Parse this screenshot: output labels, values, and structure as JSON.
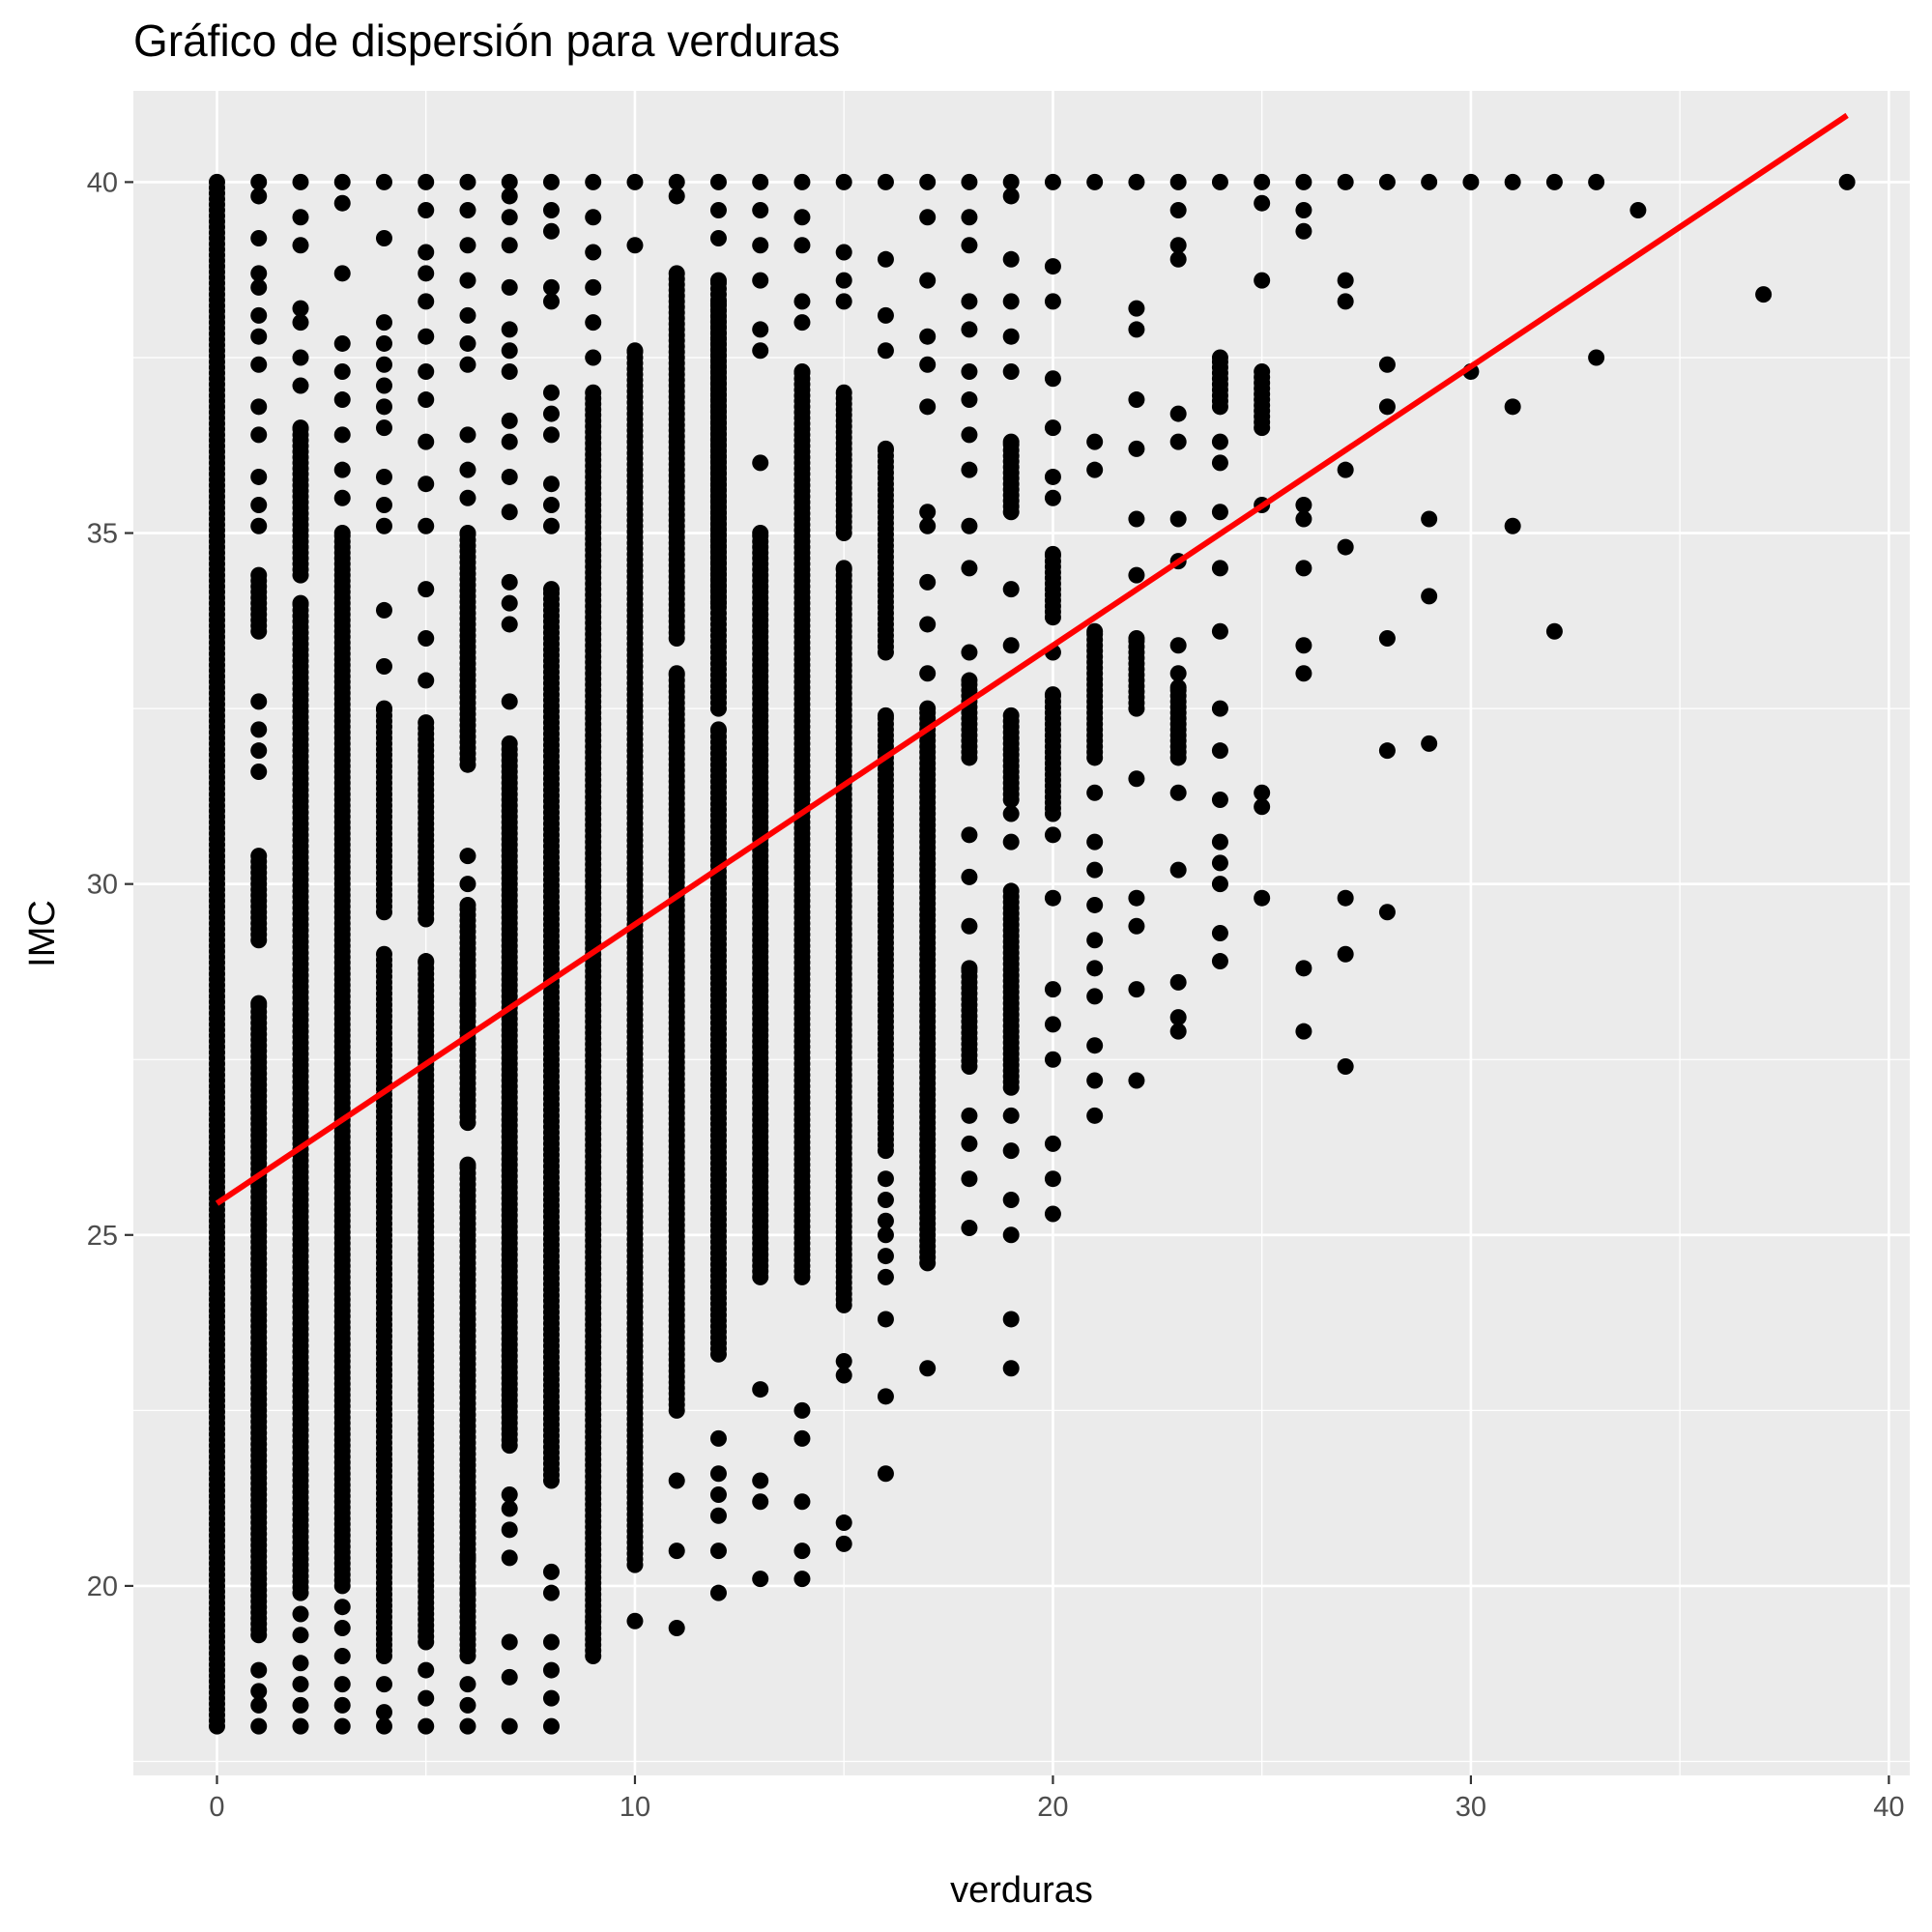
{
  "chart_data": {
    "type": "scatter",
    "title": "Gráfico de dispersión para verduras",
    "xlabel": "verduras",
    "ylabel": "IMC",
    "xlim": [
      -2,
      40.5
    ],
    "ylim": [
      17.3,
      41.3
    ],
    "x_ticks": [
      0,
      10,
      20,
      30,
      40
    ],
    "y_ticks": [
      20,
      25,
      30,
      35,
      40
    ],
    "grid": true,
    "legend": "none",
    "colors": {
      "panel": "#EBEBEB",
      "grid": "#FFFFFF",
      "points": "#000000",
      "fit_line": "#FF0000",
      "tick_label": "#4D4D4D"
    },
    "fit_line": {
      "x": [
        0,
        39
      ],
      "y": [
        25.45,
        40.95
      ]
    },
    "point_columns": [
      {
        "x": 0,
        "ranges": [
          [
            18.0,
            40.0
          ]
        ],
        "points": []
      },
      {
        "x": 1,
        "ranges": [
          [
            19.3,
            28.3
          ],
          [
            29.2,
            30.4
          ],
          [
            33.6,
            34.4
          ]
        ],
        "points": [
          18.0,
          18.3,
          18.5,
          18.8,
          31.6,
          31.9,
          32.2,
          32.6,
          35.1,
          35.4,
          35.8,
          36.4,
          36.8,
          37.4,
          37.8,
          38.1,
          38.5,
          38.7,
          39.2,
          39.8,
          40.0
        ]
      },
      {
        "x": 2,
        "ranges": [
          [
            19.9,
            34.0
          ],
          [
            34.4,
            36.5
          ]
        ],
        "points": [
          18.0,
          18.3,
          18.6,
          18.9,
          19.3,
          19.6,
          37.1,
          37.5,
          38.0,
          38.2,
          39.1,
          39.5,
          40.0
        ]
      },
      {
        "x": 3,
        "ranges": [
          [
            20.0,
            35.0
          ]
        ],
        "points": [
          18.0,
          18.3,
          18.6,
          19.0,
          19.4,
          19.7,
          35.5,
          35.9,
          36.4,
          36.9,
          37.3,
          37.7,
          38.7,
          39.7,
          40.0
        ]
      },
      {
        "x": 4,
        "ranges": [
          [
            19.0,
            29.0
          ],
          [
            29.6,
            32.5
          ]
        ],
        "points": [
          18.0,
          18.2,
          18.6,
          33.1,
          33.9,
          35.1,
          35.4,
          35.8,
          36.5,
          36.8,
          37.1,
          37.4,
          37.7,
          38.0,
          39.2,
          40.0
        ]
      },
      {
        "x": 5,
        "ranges": [
          [
            19.2,
            28.9
          ],
          [
            29.5,
            32.3
          ]
        ],
        "points": [
          18.0,
          18.4,
          18.8,
          32.9,
          33.5,
          34.2,
          35.1,
          35.7,
          36.3,
          36.9,
          37.3,
          37.8,
          38.3,
          38.7,
          39.0,
          39.6,
          40.0
        ]
      },
      {
        "x": 6,
        "ranges": [
          [
            19.0,
            26.0
          ],
          [
            26.6,
            29.7
          ],
          [
            31.7,
            35.0
          ]
        ],
        "points": [
          18.0,
          18.3,
          18.6,
          19.9,
          20.4,
          28.3,
          28.7,
          30.0,
          30.4,
          35.5,
          35.9,
          36.4,
          37.4,
          37.7,
          38.1,
          38.6,
          39.1,
          39.6,
          40.0
        ]
      },
      {
        "x": 7,
        "ranges": [
          [
            22.0,
            32.0
          ]
        ],
        "points": [
          18.0,
          18.7,
          19.2,
          20.4,
          20.8,
          21.1,
          21.3,
          32.6,
          33.7,
          34.0,
          34.3,
          35.3,
          35.8,
          36.3,
          36.6,
          37.3,
          37.6,
          37.9,
          38.5,
          39.1,
          39.5,
          39.8,
          40.0
        ]
      },
      {
        "x": 8,
        "ranges": [
          [
            21.5,
            34.2
          ]
        ],
        "points": [
          18.0,
          18.4,
          18.8,
          19.2,
          19.9,
          20.2,
          35.1,
          35.4,
          35.7,
          36.4,
          36.7,
          37.0,
          38.3,
          38.5,
          39.3,
          39.6,
          40.0
        ]
      },
      {
        "x": 9,
        "ranges": [
          [
            19.0,
            37.0
          ]
        ],
        "points": [
          19.5,
          37.5,
          38.0,
          38.5,
          39.0,
          39.5,
          40.0
        ]
      },
      {
        "x": 10,
        "ranges": [
          [
            20.3,
            37.6
          ]
        ],
        "points": [
          19.5,
          39.1,
          40.0
        ]
      },
      {
        "x": 11,
        "ranges": [
          [
            22.5,
            33.0
          ],
          [
            33.5,
            38.7
          ]
        ],
        "points": [
          19.4,
          20.5,
          21.5,
          39.8,
          40.0
        ]
      },
      {
        "x": 12,
        "ranges": [
          [
            23.3,
            32.2
          ],
          [
            32.5,
            38.3
          ],
          [
            34.0,
            38.6
          ]
        ],
        "points": [
          19.9,
          20.5,
          21.0,
          21.3,
          21.6,
          22.1,
          39.2,
          39.6,
          40.0
        ]
      },
      {
        "x": 13,
        "ranges": [
          [
            24.4,
            35.0
          ]
        ],
        "points": [
          20.1,
          21.2,
          21.5,
          22.8,
          36.0,
          37.6,
          37.9,
          38.6,
          39.1,
          39.6,
          40.0
        ]
      },
      {
        "x": 14,
        "ranges": [
          [
            24.4,
            37.3
          ]
        ],
        "points": [
          20.1,
          20.5,
          21.2,
          22.1,
          22.5,
          38.0,
          38.3,
          39.1,
          39.5,
          40.0
        ]
      },
      {
        "x": 15,
        "ranges": [
          [
            24.0,
            34.5
          ],
          [
            35.0,
            37.0
          ]
        ],
        "points": [
          20.6,
          20.9,
          23.0,
          23.2,
          38.3,
          38.6,
          39.0,
          40.0
        ]
      },
      {
        "x": 16,
        "ranges": [
          [
            26.2,
            32.4
          ],
          [
            33.3,
            36.2
          ]
        ],
        "points": [
          21.6,
          22.7,
          23.8,
          24.4,
          24.7,
          25.0,
          25.2,
          25.5,
          25.8,
          37.6,
          38.1,
          38.9,
          40.0
        ]
      },
      {
        "x": 17,
        "ranges": [
          [
            24.6,
            32.5
          ]
        ],
        "points": [
          23.1,
          33.0,
          33.7,
          34.3,
          35.1,
          35.3,
          36.8,
          37.4,
          37.8,
          38.6,
          39.5,
          40.0
        ]
      },
      {
        "x": 18,
        "ranges": [
          [
            27.4,
            28.8
          ],
          [
            31.8,
            32.9
          ]
        ],
        "points": [
          25.1,
          25.8,
          26.3,
          26.7,
          29.4,
          30.1,
          30.7,
          33.3,
          34.5,
          35.1,
          35.9,
          36.4,
          36.9,
          37.3,
          37.9,
          38.3,
          39.1,
          39.5,
          40.0
        ]
      },
      {
        "x": 19,
        "ranges": [
          [
            27.1,
            29.9
          ],
          [
            31.2,
            32.4
          ],
          [
            35.3,
            36.3
          ]
        ],
        "points": [
          23.1,
          23.8,
          25.0,
          25.5,
          26.2,
          26.7,
          30.6,
          31.0,
          33.4,
          34.2,
          37.3,
          37.8,
          38.3,
          38.9,
          39.8,
          40.0
        ]
      },
      {
        "x": 20,
        "ranges": [
          [
            31.0,
            32.7
          ],
          [
            33.8,
            34.7
          ]
        ],
        "points": [
          25.3,
          25.8,
          26.3,
          27.5,
          28.0,
          28.5,
          29.8,
          30.7,
          33.3,
          35.5,
          35.8,
          36.5,
          37.2,
          38.3,
          38.8,
          40.0
        ]
      },
      {
        "x": 21,
        "ranges": [
          [
            31.8,
            33.6
          ]
        ],
        "points": [
          26.7,
          27.2,
          27.7,
          28.4,
          28.8,
          29.2,
          29.7,
          30.2,
          30.6,
          31.3,
          35.9,
          36.3,
          40.0
        ]
      },
      {
        "x": 22,
        "ranges": [
          [
            32.5,
            33.5
          ]
        ],
        "points": [
          27.2,
          28.5,
          29.4,
          29.8,
          31.5,
          34.4,
          35.2,
          36.2,
          36.9,
          37.9,
          38.2,
          40.0
        ]
      },
      {
        "x": 23,
        "ranges": [
          [
            31.8,
            32.8
          ]
        ],
        "points": [
          27.9,
          28.1,
          28.6,
          30.2,
          31.3,
          33.0,
          33.4,
          34.6,
          35.2,
          36.3,
          36.7,
          38.9,
          39.1,
          39.6,
          40.0
        ]
      },
      {
        "x": 24,
        "ranges": [
          [
            36.8,
            37.5
          ]
        ],
        "points": [
          28.9,
          29.3,
          30.0,
          30.3,
          30.6,
          31.2,
          31.9,
          32.5,
          33.6,
          34.5,
          35.3,
          36.0,
          36.3,
          40.0
        ]
      },
      {
        "x": 25,
        "ranges": [
          [
            36.5,
            37.3
          ]
        ],
        "points": [
          29.8,
          31.1,
          31.3,
          35.4,
          38.6,
          39.7,
          40.0
        ]
      },
      {
        "x": 26,
        "ranges": [],
        "points": [
          27.9,
          28.8,
          33.0,
          33.4,
          34.5,
          35.2,
          35.4,
          39.3,
          39.6,
          40.0
        ]
      },
      {
        "x": 27,
        "ranges": [],
        "points": [
          27.4,
          29.0,
          29.8,
          34.8,
          35.9,
          38.3,
          38.6,
          40.0
        ]
      },
      {
        "x": 28,
        "ranges": [],
        "points": [
          29.6,
          31.9,
          33.5,
          36.8,
          37.4,
          40.0
        ]
      },
      {
        "x": 29,
        "ranges": [],
        "points": [
          32.0,
          34.1,
          35.2,
          40.0
        ]
      },
      {
        "x": 30,
        "ranges": [],
        "points": [
          37.3,
          40.0
        ]
      },
      {
        "x": 31,
        "ranges": [],
        "points": [
          35.1,
          36.8,
          40.0
        ]
      },
      {
        "x": 32,
        "ranges": [],
        "points": [
          33.6,
          40.0
        ]
      },
      {
        "x": 33,
        "ranges": [],
        "points": [
          37.5,
          40.0
        ]
      },
      {
        "x": 34,
        "ranges": [],
        "points": [
          39.6
        ]
      },
      {
        "x": 37,
        "ranges": [],
        "points": [
          38.4
        ]
      },
      {
        "x": 39,
        "ranges": [],
        "points": [
          40.0
        ]
      }
    ]
  }
}
